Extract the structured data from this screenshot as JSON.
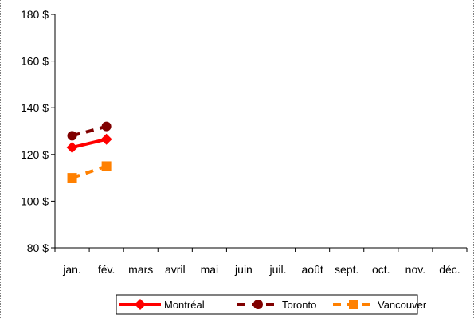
{
  "chart_data": {
    "type": "line",
    "title": "",
    "xlabel": "",
    "ylabel": "",
    "categories": [
      "jan.",
      "fév.",
      "mars",
      "avril",
      "mai",
      "juin",
      "juil.",
      "août",
      "sept.",
      "oct.",
      "nov.",
      "déc."
    ],
    "y_ticks": [
      "80 $",
      "100 $",
      "120 $",
      "140 $",
      "160 $",
      "180 $"
    ],
    "y_tick_values": [
      80,
      100,
      120,
      140,
      160,
      180
    ],
    "ylim": [
      80,
      180
    ],
    "grid": false,
    "legend_position": "bottom",
    "series": [
      {
        "name": "Montréal",
        "values": [
          123,
          126.5,
          null,
          null,
          null,
          null,
          null,
          null,
          null,
          null,
          null,
          null
        ],
        "color": "#ff0000",
        "marker": "diamond",
        "line_style": "solid"
      },
      {
        "name": "Toronto",
        "values": [
          128,
          132,
          null,
          null,
          null,
          null,
          null,
          null,
          null,
          null,
          null,
          null
        ],
        "color": "#800000",
        "marker": "circle",
        "line_style": "dashed"
      },
      {
        "name": "Vancouver",
        "values": [
          110,
          115,
          null,
          null,
          null,
          null,
          null,
          null,
          null,
          null,
          null,
          null
        ],
        "color": "#ff8000",
        "marker": "square",
        "line_style": "dashed"
      }
    ]
  }
}
